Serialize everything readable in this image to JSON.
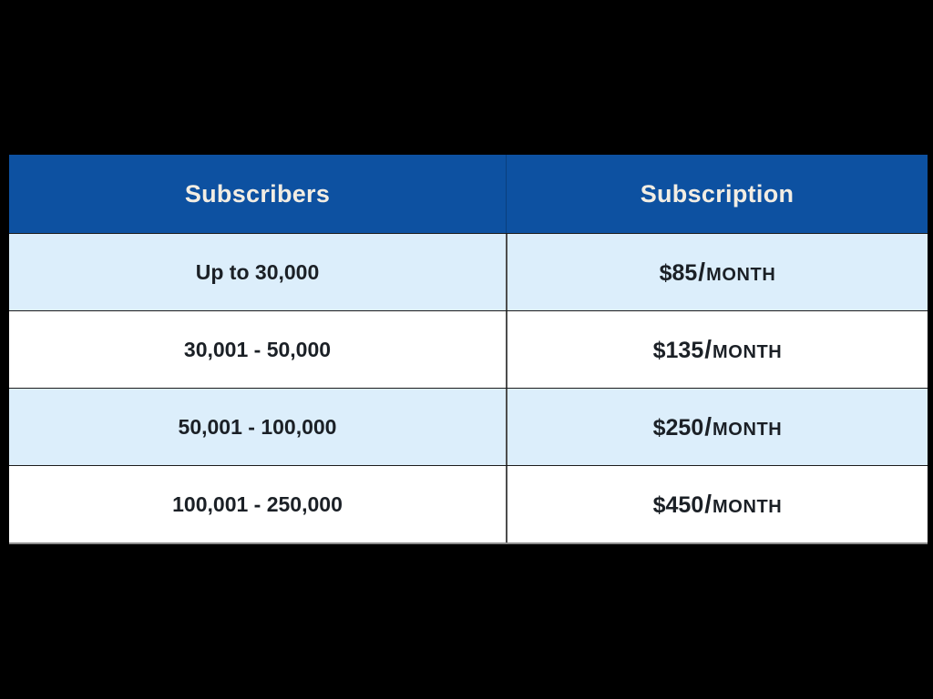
{
  "page": {
    "background": "#000000"
  },
  "pricing_table": {
    "columns": [
      {
        "label": "Subscribers"
      },
      {
        "label": "Subscription"
      }
    ],
    "price_separator": "/",
    "rows": [
      {
        "subscribers": "Up to 30,000",
        "price_amount": "$85",
        "price_period": "MONTH"
      },
      {
        "subscribers": "30,001 - 50,000",
        "price_amount": "$135",
        "price_period": "MONTH"
      },
      {
        "subscribers": "50,001 - 100,000",
        "price_amount": "$250",
        "price_period": "MONTH"
      },
      {
        "subscribers": "100,001 - 250,000",
        "price_amount": "$450",
        "price_period": "MONTH"
      }
    ],
    "colors": {
      "page_bg": "#000000",
      "header_bg": "#0d51a1",
      "header_text": "#f2ede3",
      "row_alt_bg": "#dceefb",
      "row_bg": "#ffffff",
      "body_text": "#1b2026"
    }
  },
  "chart_data": {
    "type": "table",
    "columns": [
      "Subscribers",
      "Subscription"
    ],
    "rows": [
      [
        "Up to 30,000",
        "$85/MONTH"
      ],
      [
        "30,001 - 50,000",
        "$135/MONTH"
      ],
      [
        "50,001 - 100,000",
        "$250/MONTH"
      ],
      [
        "100,001 - 250,000",
        "$450/MONTH"
      ]
    ]
  }
}
